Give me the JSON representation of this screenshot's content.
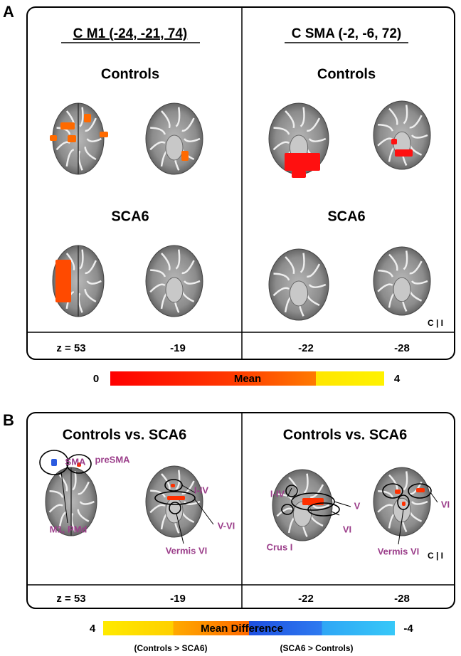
{
  "panels": [
    {
      "label": "A",
      "columns": [
        {
          "title": "C M1 (-24, -21, 74)",
          "rows": [
            "Controls",
            "SCA6"
          ],
          "slices": [
            "z = 53",
            "-19"
          ]
        },
        {
          "title": "C SMA (-2, -6, 72)",
          "rows": [
            "Controls",
            "SCA6"
          ],
          "slices": [
            "-22",
            "-28"
          ]
        }
      ],
      "orientation": "C | I",
      "colorbar": {
        "min": "0",
        "label": "Mean",
        "max": "4"
      }
    },
    {
      "label": "B",
      "columns": [
        {
          "title": "Controls vs. SCA6",
          "slices": [
            "z = 53",
            "-19"
          ],
          "regions": [
            "SMA",
            "preSMA",
            "M1, PMd",
            "I-IV",
            "V-VI",
            "Vermis VI"
          ]
        },
        {
          "title": "Controls vs. SCA6",
          "slices": [
            "-22",
            "-28"
          ],
          "regions": [
            "I-IV",
            "V",
            "VI",
            "Crus I",
            "VI",
            "Vermis VI"
          ]
        }
      ],
      "orientation": "C | I",
      "colorbar": {
        "max": "4",
        "label": "Mean Difference",
        "min": "-4",
        "notes": [
          "(Controls > SCA6)",
          "(SCA6 > Controls)"
        ]
      }
    }
  ]
}
